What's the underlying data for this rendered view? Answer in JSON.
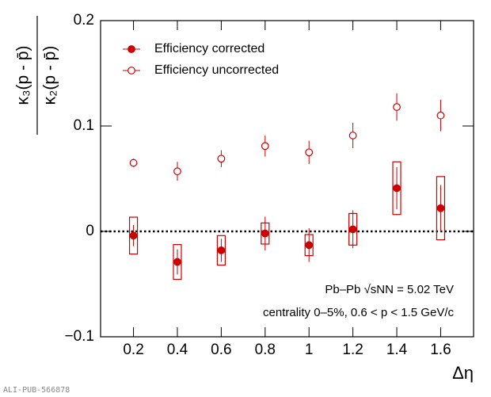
{
  "chart_data": {
    "type": "errorbar",
    "xlabel": "Δη",
    "ylabel_numerator": "κ₃(p - p̄)",
    "ylabel_denominator": "κ₂(p - p̄)",
    "annotations": [
      "Pb–Pb √sNN = 5.02 TeV",
      "centrality 0–5%, 0.6 < p < 1.5 GeV/c"
    ],
    "watermark": "ALI-PUB-566878",
    "x": [
      0.2,
      0.4,
      0.6,
      0.8,
      1,
      1.2,
      1.4,
      1.6
    ],
    "xlim": [
      0.05,
      1.75
    ],
    "xticks": [
      0.2,
      0.4,
      0.6,
      0.8,
      1,
      1.2,
      1.4,
      1.6
    ],
    "ylim": [
      -0.1,
      0.2
    ],
    "yticks": [
      {
        "value": -0.1,
        "label": "−0.1"
      },
      0,
      0.1,
      0.2
    ],
    "reference_line": 0,
    "legend": "top-left",
    "series": [
      {
        "name": "Efficiency corrected",
        "color": "#cc0000",
        "marker": "filled",
        "values": [
          -0.004,
          -0.029,
          -0.018,
          -0.002,
          -0.013,
          0.002,
          0.041,
          0.022
        ],
        "errors": [
          0.01,
          0.012,
          0.011,
          0.016,
          0.016,
          0.018,
          0.02,
          0.022
        ],
        "sys": [
          0.0175,
          0.0165,
          0.014,
          0.01,
          0.01,
          0.015,
          0.025,
          0.03
        ]
      },
      {
        "name": "Efficiency uncorrected",
        "color": "#cc0000",
        "marker": "open",
        "values": [
          0.065,
          0.057,
          0.069,
          0.081,
          0.075,
          0.091,
          0.118,
          0.11
        ],
        "errors": [
          0.004,
          0.009,
          0.008,
          0.01,
          0.011,
          0.012,
          0.013,
          0.015
        ]
      }
    ]
  }
}
